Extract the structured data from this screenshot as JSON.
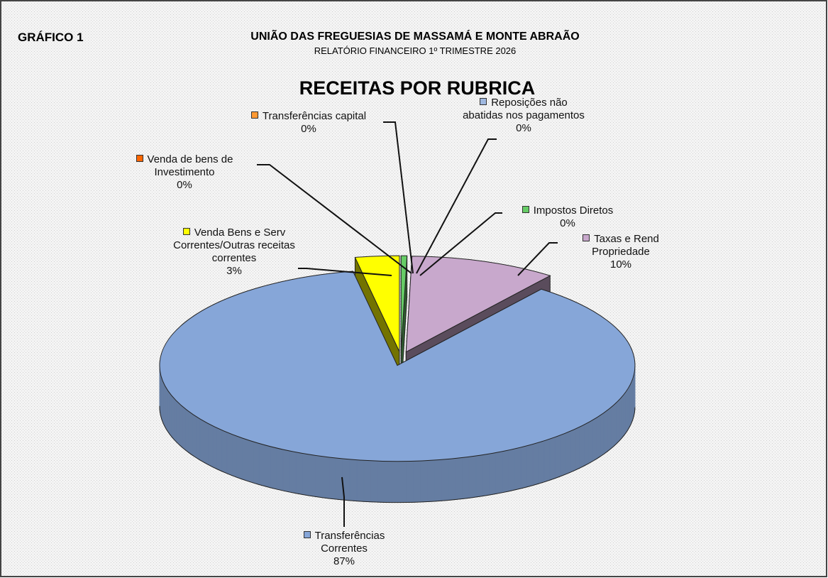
{
  "chart_data": {
    "type": "pie3d",
    "corner_label": "GRÁFICO 1",
    "header": "UNIÃO DAS FREGUESIAS DE MASSAMÁ  E MONTE ABRAÃO",
    "subtitle": "RELATÓRIO FINANCEIRO 1º TRIMESTRE 2026",
    "title": "RECEITAS POR RUBRICA",
    "categories": [
      "Reposições não abatidas nos pagamentos",
      "Impostos Diretos",
      "Taxas e Rend Propriedade",
      "Transferências Correntes",
      "Venda Bens e Serv Correntes/Outras receitas correntes",
      "Venda de bens de Investimento",
      "Transferências capital"
    ],
    "values": [
      0,
      0.4,
      10,
      87,
      3,
      0,
      0
    ],
    "value_labels": [
      "0%",
      "0%",
      "10%",
      "87%",
      "3%",
      "0%",
      "0%"
    ],
    "colors": [
      "#9fb8e0",
      "#66cc66",
      "#c8a8cc",
      "#86a6d8",
      "#ffff00",
      "#ff6600",
      "#ff9933"
    ]
  }
}
